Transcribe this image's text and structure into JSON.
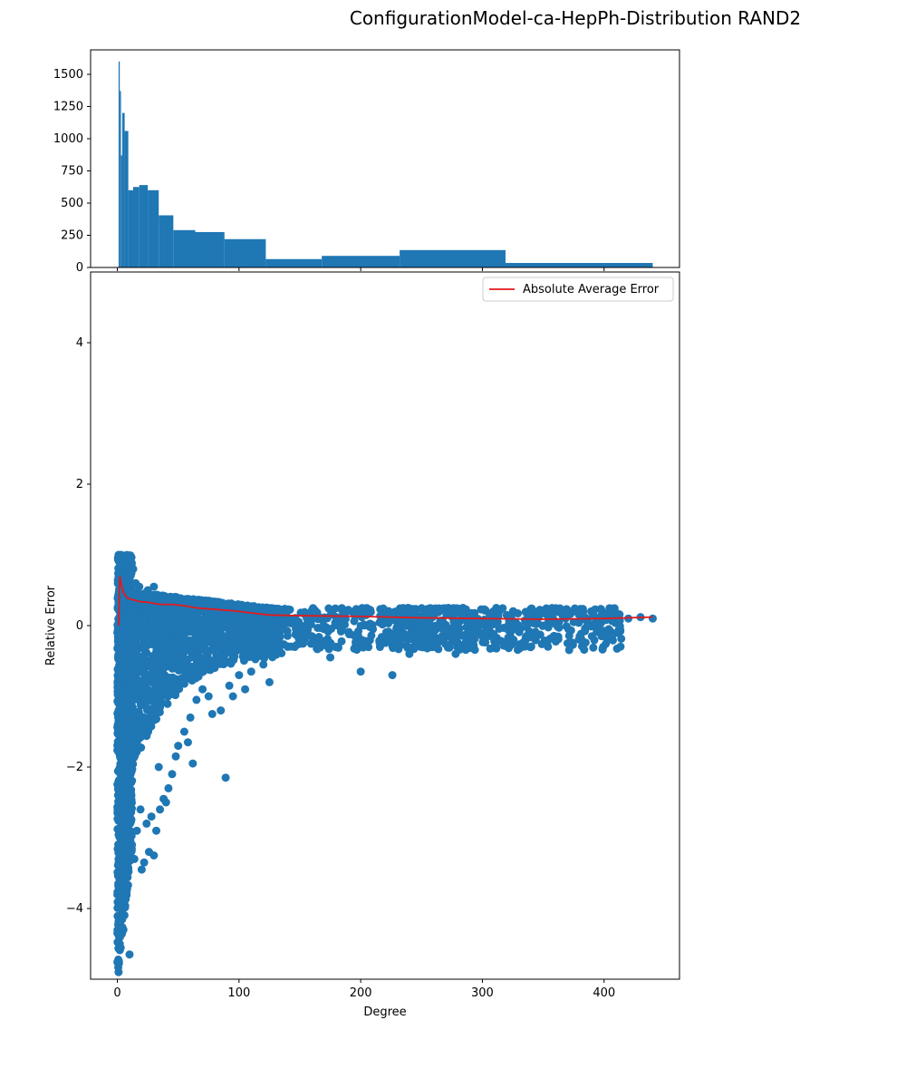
{
  "figure": {
    "title": "ConfigurationModel-ca-HepPh-Distribution  RAND2"
  },
  "chart_data": [
    {
      "type": "bar",
      "name": "histogram",
      "xlim": [
        -22,
        462
      ],
      "ylim": [
        0,
        1690
      ],
      "y_ticks": [
        0,
        250,
        500,
        750,
        1000,
        1250,
        1500
      ],
      "x_ticks": [
        0,
        100,
        200,
        300,
        400
      ],
      "x_tick_labels_visible": false,
      "bins": [
        {
          "x0": 1,
          "x1": 2,
          "v": 1600
        },
        {
          "x0": 2,
          "x1": 3,
          "v": 1370
        },
        {
          "x0": 3,
          "x1": 4,
          "v": 870
        },
        {
          "x0": 4,
          "x1": 6,
          "v": 1200
        },
        {
          "x0": 6,
          "x1": 9,
          "v": 1060
        },
        {
          "x0": 9,
          "x1": 13,
          "v": 600
        },
        {
          "x0": 13,
          "x1": 18,
          "v": 625
        },
        {
          "x0": 18,
          "x1": 25,
          "v": 640
        },
        {
          "x0": 25,
          "x1": 34,
          "v": 600
        },
        {
          "x0": 34,
          "x1": 46,
          "v": 405
        },
        {
          "x0": 46,
          "x1": 64,
          "v": 290
        },
        {
          "x0": 64,
          "x1": 88,
          "v": 275
        },
        {
          "x0": 88,
          "x1": 122,
          "v": 220
        },
        {
          "x0": 122,
          "x1": 168,
          "v": 65
        },
        {
          "x0": 168,
          "x1": 232,
          "v": 90
        },
        {
          "x0": 232,
          "x1": 319,
          "v": 135
        },
        {
          "x0": 319,
          "x1": 440,
          "v": 35
        }
      ]
    },
    {
      "type": "scatter",
      "name": "errors",
      "xlabel": "Degree",
      "ylabel": "Relative Error",
      "xlim": [
        -22,
        462
      ],
      "ylim": [
        -5,
        5
      ],
      "x_ticks": [
        0,
        100,
        200,
        300,
        400
      ],
      "y_ticks": [
        -4,
        -2,
        0,
        2,
        4
      ],
      "legend": {
        "label": "Absolute Average Error",
        "position": "top-right"
      },
      "colors": {
        "points": "#1f77b4",
        "line": "#e31a1c"
      },
      "line_series": {
        "name": "Absolute Average Error",
        "x": [
          1,
          2,
          3,
          5,
          8,
          12,
          18,
          25,
          35,
          45,
          55,
          65,
          80,
          95,
          110,
          125,
          150,
          200,
          250,
          300,
          350,
          400,
          440
        ],
        "y": [
          0.0,
          0.7,
          0.6,
          0.47,
          0.39,
          0.37,
          0.34,
          0.33,
          0.3,
          0.3,
          0.28,
          0.25,
          0.23,
          0.21,
          0.18,
          0.15,
          0.14,
          0.13,
          0.11,
          0.1,
          0.09,
          0.1,
          0.12
        ]
      },
      "points_summary": {
        "band_mid_degree": {
          "x_range": [
            5,
            130
          ],
          "y_range": [
            -1.3,
            0.5
          ]
        },
        "band_high_degree": {
          "x_range": [
            130,
            440
          ],
          "y_range": [
            -0.5,
            0.3
          ]
        },
        "low_degree_fan": {
          "x_range": [
            0,
            12
          ],
          "y_range": [
            -5,
            1.0
          ]
        }
      },
      "points": [
        [
          0,
          -0.1
        ],
        [
          1,
          1.0
        ],
        [
          1,
          -4.9
        ],
        [
          2,
          0.95
        ],
        [
          2,
          -4.5
        ],
        [
          3,
          1.0
        ],
        [
          3,
          -4.1
        ],
        [
          4,
          0.9
        ],
        [
          4,
          -3.9
        ],
        [
          5,
          0.95
        ],
        [
          5,
          -4.3
        ],
        [
          6,
          0.9
        ],
        [
          6,
          -3.6
        ],
        [
          7,
          0.85
        ],
        [
          8,
          0.9
        ],
        [
          8,
          -3.5
        ],
        [
          9,
          0.8
        ],
        [
          10,
          0.7
        ],
        [
          10,
          -4.65
        ],
        [
          11,
          0.75
        ],
        [
          12,
          -3.1
        ],
        [
          13,
          0.8
        ],
        [
          14,
          -3.3
        ],
        [
          15,
          0.6
        ],
        [
          16,
          -2.9
        ],
        [
          18,
          0.55
        ],
        [
          19,
          -2.6
        ],
        [
          20,
          -3.45
        ],
        [
          22,
          -3.35
        ],
        [
          24,
          -2.8
        ],
        [
          25,
          0.5
        ],
        [
          26,
          -3.2
        ],
        [
          28,
          -2.7
        ],
        [
          30,
          -3.25
        ],
        [
          30,
          0.55
        ],
        [
          32,
          -2.9
        ],
        [
          34,
          -2.0
        ],
        [
          35,
          -2.6
        ],
        [
          38,
          -2.45
        ],
        [
          40,
          -2.5
        ],
        [
          42,
          -2.3
        ],
        [
          45,
          -2.1
        ],
        [
          48,
          -1.85
        ],
        [
          50,
          -1.7
        ],
        [
          55,
          -1.5
        ],
        [
          58,
          -1.65
        ],
        [
          60,
          -1.3
        ],
        [
          62,
          -1.95
        ],
        [
          65,
          -1.05
        ],
        [
          70,
          -0.9
        ],
        [
          75,
          -1.0
        ],
        [
          78,
          -1.25
        ],
        [
          85,
          -1.2
        ],
        [
          89,
          -2.15
        ],
        [
          92,
          -0.85
        ],
        [
          95,
          -1.0
        ],
        [
          100,
          -0.7
        ],
        [
          105,
          -0.9
        ],
        [
          110,
          -0.65
        ],
        [
          120,
          -0.55
        ],
        [
          125,
          -0.8
        ],
        [
          140,
          -0.3
        ],
        [
          150,
          -0.2
        ],
        [
          160,
          -0.15
        ],
        [
          175,
          -0.45
        ],
        [
          180,
          -0.3
        ],
        [
          190,
          -0.1
        ],
        [
          200,
          -0.65
        ],
        [
          210,
          -0.05
        ],
        [
          226,
          -0.7
        ],
        [
          230,
          -0.3
        ],
        [
          240,
          -0.4
        ],
        [
          250,
          -0.2
        ],
        [
          260,
          -0.1
        ],
        [
          270,
          -0.05
        ],
        [
          278,
          -0.4
        ],
        [
          290,
          0.05
        ],
        [
          300,
          -0.15
        ],
        [
          310,
          -0.3
        ],
        [
          320,
          0.15
        ],
        [
          330,
          0.0
        ],
        [
          340,
          0.05
        ],
        [
          350,
          0.0
        ],
        [
          370,
          -0.25
        ],
        [
          375,
          0.05
        ],
        [
          380,
          -0.15
        ],
        [
          385,
          0.1
        ],
        [
          390,
          -0.15
        ],
        [
          398,
          -0.15
        ],
        [
          398,
          0.15
        ],
        [
          420,
          0.1
        ],
        [
          430,
          0.12
        ],
        [
          440,
          0.1
        ]
      ]
    }
  ]
}
